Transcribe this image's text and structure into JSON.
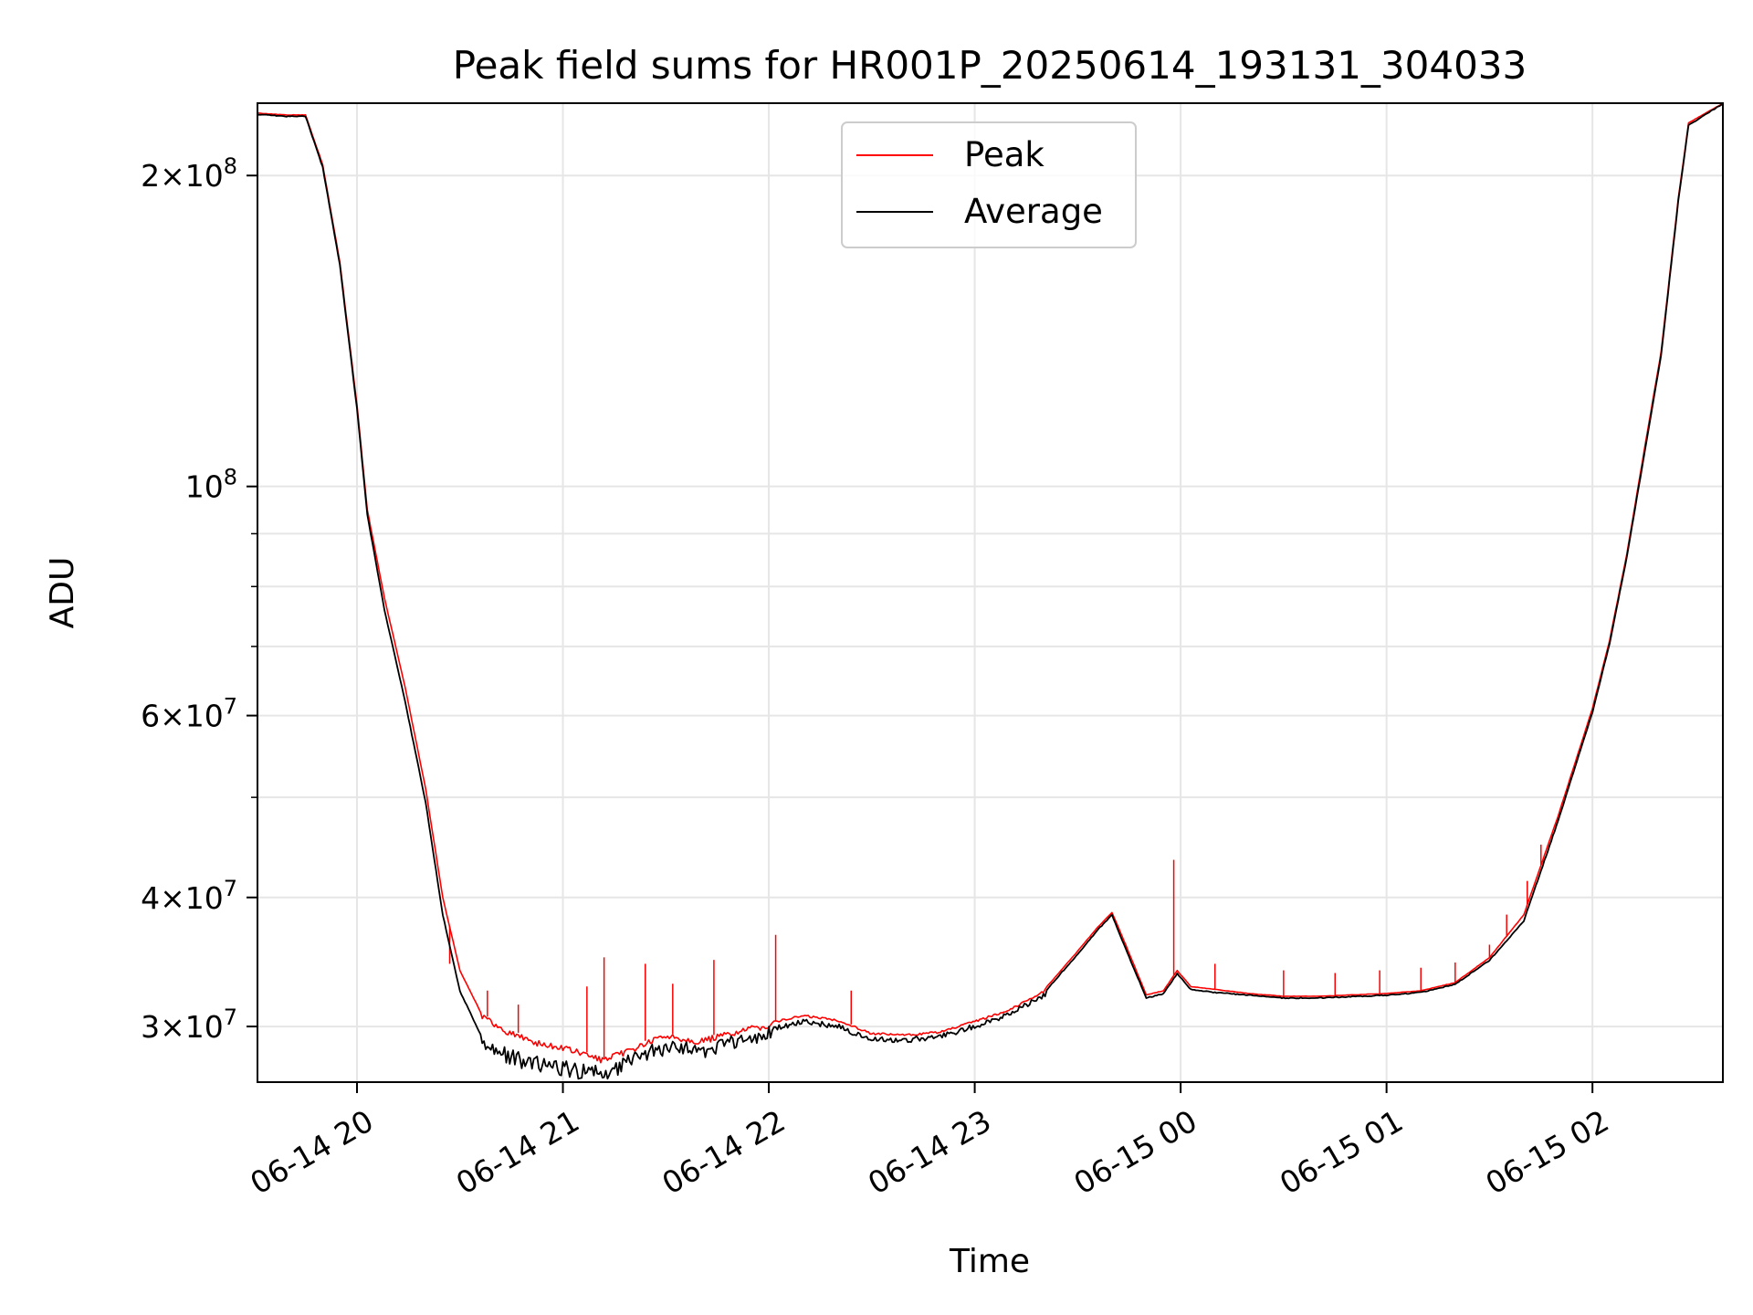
{
  "chart_data": {
    "type": "line",
    "title": "Peak field sums for HR001P_20250614_193131_304033",
    "xlabel": "Time",
    "ylabel": "ADU",
    "yscale": "log",
    "grid": true,
    "legend_position": "top-center",
    "xlim": [
      "2025-06-14 19:31",
      "2025-06-15 02:38"
    ],
    "ylim": [
      26500000,
      235000000
    ],
    "x_ticks": [
      {
        "value": "2025-06-14 20:00",
        "label": "06-14 20"
      },
      {
        "value": "2025-06-14 21:00",
        "label": "06-14 21"
      },
      {
        "value": "2025-06-14 22:00",
        "label": "06-14 22"
      },
      {
        "value": "2025-06-14 23:00",
        "label": "06-14 23"
      },
      {
        "value": "2025-06-15 00:00",
        "label": "06-15 00"
      },
      {
        "value": "2025-06-15 01:00",
        "label": "06-15 01"
      },
      {
        "value": "2025-06-15 02:00",
        "label": "06-15 02"
      }
    ],
    "y_major_ticks": [
      {
        "value": 30000000,
        "mant": "3",
        "exp": "7"
      },
      {
        "value": 40000000,
        "mant": "4",
        "exp": "7"
      },
      {
        "value": 60000000,
        "mant": "6",
        "exp": "7"
      },
      {
        "value": 100000000,
        "mant": "",
        "exp": "8"
      },
      {
        "value": 200000000,
        "mant": "2",
        "exp": "8"
      }
    ],
    "y_minor_ticks": [
      50000000,
      70000000,
      80000000,
      90000000
    ],
    "series": [
      {
        "name": "Peak",
        "color": "#ff0000",
        "x": [
          "2025-06-14 19:31",
          "2025-06-14 19:39",
          "2025-06-14 19:45",
          "2025-06-14 19:50",
          "2025-06-14 19:55",
          "2025-06-14 20:00",
          "2025-06-14 20:03",
          "2025-06-14 20:08",
          "2025-06-14 20:14",
          "2025-06-14 20:20",
          "2025-06-14 20:25",
          "2025-06-14 20:30",
          "2025-06-14 20:36",
          "2025-06-14 20:42",
          "2025-06-14 20:48",
          "2025-06-14 20:54",
          "2025-06-14 21:00",
          "2025-06-14 21:06",
          "2025-06-14 21:12",
          "2025-06-14 21:20",
          "2025-06-14 21:30",
          "2025-06-14 21:40",
          "2025-06-14 21:50",
          "2025-06-14 22:00",
          "2025-06-14 22:10",
          "2025-06-14 22:20",
          "2025-06-14 22:30",
          "2025-06-14 22:40",
          "2025-06-14 22:50",
          "2025-06-14 23:00",
          "2025-06-14 23:10",
          "2025-06-14 23:20",
          "2025-06-14 23:30",
          "2025-06-14 23:36",
          "2025-06-14 23:40",
          "2025-06-14 23:44",
          "2025-06-14 23:50",
          "2025-06-14 23:55",
          "2025-06-14 23:59",
          "2025-06-15 00:03",
          "2025-06-15 00:10",
          "2025-06-15 00:20",
          "2025-06-15 00:30",
          "2025-06-15 00:40",
          "2025-06-15 00:50",
          "2025-06-15 01:00",
          "2025-06-15 01:10",
          "2025-06-15 01:20",
          "2025-06-15 01:30",
          "2025-06-15 01:40",
          "2025-06-15 01:50",
          "2025-06-15 02:00",
          "2025-06-15 02:05",
          "2025-06-15 02:10",
          "2025-06-15 02:15",
          "2025-06-15 02:20",
          "2025-06-15 02:25",
          "2025-06-15 02:28",
          "2025-06-15 02:38"
        ],
        "y": [
          230000000,
          229000000,
          229000000,
          205000000,
          165000000,
          120000000,
          95000000,
          78000000,
          64000000,
          51000000,
          40000000,
          34000000,
          31000000,
          30000000,
          29500000,
          29000000,
          28800000,
          28400000,
          28000000,
          28700000,
          29600000,
          29200000,
          29800000,
          30300000,
          30800000,
          30500000,
          29600000,
          29500000,
          29700000,
          30400000,
          31200000,
          32500000,
          35500000,
          37500000,
          38700000,
          36000000,
          32200000,
          32500000,
          34000000,
          32800000,
          32600000,
          32300000,
          32100000,
          32100000,
          32200000,
          32300000,
          32500000,
          33100000,
          35000000,
          38500000,
          48000000,
          61000000,
          71000000,
          86000000,
          108000000,
          135000000,
          190000000,
          225000000,
          235000000
        ],
        "spikes": [
          {
            "x": "2025-06-14 20:27",
            "y": 34500000
          },
          {
            "x": "2025-06-14 20:38",
            "y": 32500000
          },
          {
            "x": "2025-06-14 20:47",
            "y": 31500000
          },
          {
            "x": "2025-06-14 21:07",
            "y": 32800000
          },
          {
            "x": "2025-06-14 21:12",
            "y": 35000000
          },
          {
            "x": "2025-06-14 21:24",
            "y": 34500000
          },
          {
            "x": "2025-06-14 21:32",
            "y": 33000000
          },
          {
            "x": "2025-06-14 21:44",
            "y": 34800000
          },
          {
            "x": "2025-06-14 22:02",
            "y": 36800000
          },
          {
            "x": "2025-06-14 22:24",
            "y": 32500000
          },
          {
            "x": "2025-06-14 23:58",
            "y": 43500000
          },
          {
            "x": "2025-06-15 00:10",
            "y": 34500000
          },
          {
            "x": "2025-06-15 00:30",
            "y": 34000000
          },
          {
            "x": "2025-06-15 00:45",
            "y": 33800000
          },
          {
            "x": "2025-06-15 00:58",
            "y": 34000000
          },
          {
            "x": "2025-06-15 01:10",
            "y": 34200000
          },
          {
            "x": "2025-06-15 01:20",
            "y": 34600000
          },
          {
            "x": "2025-06-15 01:30",
            "y": 36000000
          },
          {
            "x": "2025-06-15 01:35",
            "y": 38500000
          },
          {
            "x": "2025-06-15 01:41",
            "y": 41500000
          },
          {
            "x": "2025-06-15 01:45",
            "y": 45000000
          }
        ]
      },
      {
        "name": "Average",
        "color": "#000000",
        "x": [
          "2025-06-14 19:31",
          "2025-06-14 19:39",
          "2025-06-14 19:45",
          "2025-06-14 19:50",
          "2025-06-14 19:55",
          "2025-06-14 20:00",
          "2025-06-14 20:03",
          "2025-06-14 20:08",
          "2025-06-14 20:14",
          "2025-06-14 20:20",
          "2025-06-14 20:25",
          "2025-06-14 20:30",
          "2025-06-14 20:36",
          "2025-06-14 20:42",
          "2025-06-14 20:48",
          "2025-06-14 20:54",
          "2025-06-14 21:00",
          "2025-06-14 21:06",
          "2025-06-14 21:12",
          "2025-06-14 21:20",
          "2025-06-14 21:30",
          "2025-06-14 21:40",
          "2025-06-14 21:50",
          "2025-06-14 22:00",
          "2025-06-14 22:10",
          "2025-06-14 22:20",
          "2025-06-14 22:30",
          "2025-06-14 22:40",
          "2025-06-14 22:50",
          "2025-06-14 23:00",
          "2025-06-14 23:10",
          "2025-06-14 23:20",
          "2025-06-14 23:30",
          "2025-06-14 23:36",
          "2025-06-14 23:40",
          "2025-06-14 23:44",
          "2025-06-14 23:50",
          "2025-06-14 23:55",
          "2025-06-14 23:59",
          "2025-06-15 00:03",
          "2025-06-15 00:10",
          "2025-06-15 00:20",
          "2025-06-15 00:30",
          "2025-06-15 00:40",
          "2025-06-15 00:50",
          "2025-06-15 01:00",
          "2025-06-15 01:10",
          "2025-06-15 01:20",
          "2025-06-15 01:30",
          "2025-06-15 01:40",
          "2025-06-15 01:50",
          "2025-06-15 02:00",
          "2025-06-15 02:05",
          "2025-06-15 02:10",
          "2025-06-15 02:15",
          "2025-06-15 02:20",
          "2025-06-15 02:25",
          "2025-06-15 02:28",
          "2025-06-15 02:38"
        ],
        "y": [
          229500000,
          228500000,
          228500000,
          204000000,
          164000000,
          119000000,
          94000000,
          76000000,
          62000000,
          49500000,
          38500000,
          32500000,
          29500000,
          28800000,
          28300000,
          28000000,
          27800000,
          27600000,
          27500000,
          28300000,
          29200000,
          28900000,
          29400000,
          30000000,
          30500000,
          30200000,
          29300000,
          29300000,
          29500000,
          30200000,
          31000000,
          32300000,
          35300000,
          37300000,
          38500000,
          35700000,
          32000000,
          32300000,
          33800000,
          32600000,
          32400000,
          32200000,
          32000000,
          32000000,
          32100000,
          32200000,
          32400000,
          33000000,
          34800000,
          38000000,
          47500000,
          60500000,
          70500000,
          85500000,
          107000000,
          134000000,
          189000000,
          224000000,
          235000000
        ]
      }
    ]
  }
}
